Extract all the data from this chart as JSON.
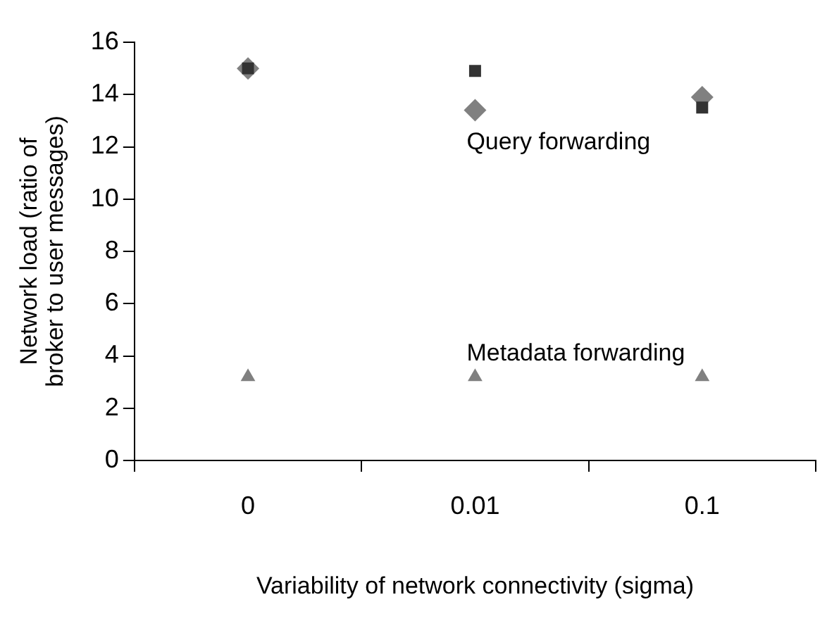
{
  "chart_data": {
    "type": "scatter",
    "xlabel": "Variability of network connectivity (sigma)",
    "ylabel": "Network load (ratio of broker to user messages)",
    "categories": [
      "0",
      "0.01",
      "0.1"
    ],
    "series": [
      {
        "color": "#333333",
        "marker": "square",
        "values": [
          15.0,
          14.9,
          13.5
        ]
      },
      {
        "color": "#808080",
        "marker": "diamond",
        "values": [
          15.0,
          13.4,
          13.9
        ]
      },
      {
        "color": "#808080",
        "marker": "triangle",
        "values": [
          3.2,
          3.2,
          3.2
        ]
      }
    ],
    "ylim": [
      0,
      16
    ],
    "yticks": [
      0,
      2,
      4,
      6,
      8,
      10,
      12,
      14,
      16
    ],
    "grid": false,
    "legend": false,
    "annotations": [
      "Query forwarding",
      "Metadata forwarding"
    ]
  }
}
